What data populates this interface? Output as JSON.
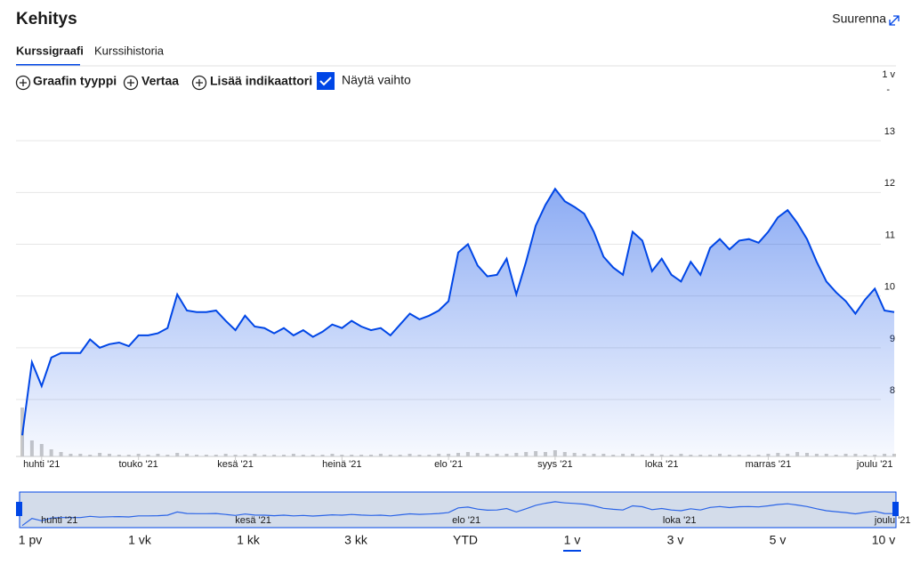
{
  "header": {
    "title": "Kehitys",
    "expand": "Suurenna"
  },
  "tabs": [
    "Kurssigraafi",
    "Kurssihistoria"
  ],
  "toolbar": {
    "buttons": [
      "Graafin tyyppi",
      "Vertaa",
      "Lisää indikaattori"
    ],
    "checkbox": "Näytä vaihto"
  },
  "chart_data": {
    "type": "line",
    "color": "#0046e6",
    "series": [
      {
        "values": [
          7.31,
          8.72,
          8.26,
          8.81,
          8.9,
          8.9,
          8.9,
          9.16,
          9.0,
          9.07,
          9.1,
          9.03,
          9.24,
          9.24,
          9.28,
          9.38,
          10.03,
          9.72,
          9.69,
          9.69,
          9.72,
          9.52,
          9.34,
          9.62,
          9.41,
          9.38,
          9.28,
          9.38,
          9.24,
          9.34,
          9.21,
          9.31,
          9.45,
          9.38,
          9.52,
          9.41,
          9.34,
          9.38,
          9.24,
          9.45,
          9.66,
          9.55,
          9.62,
          9.72,
          9.9,
          10.84,
          11.0,
          10.59,
          10.38,
          10.41,
          10.72,
          10.03,
          10.66,
          11.36,
          11.76,
          12.07,
          11.83,
          11.72,
          11.59,
          11.24,
          10.76,
          10.55,
          10.41,
          11.24,
          11.07,
          10.48,
          10.72,
          10.41,
          10.28,
          10.66,
          10.41,
          10.93,
          11.1,
          10.9,
          11.07,
          11.1,
          11.03,
          11.24,
          11.52,
          11.66,
          11.41,
          11.1,
          10.66,
          10.28,
          10.07,
          9.9,
          9.66,
          9.93,
          10.14,
          9.72,
          9.69
        ]
      }
    ],
    "volume": {
      "color": "#c8c8c8",
      "values": [
        55,
        18,
        14,
        8,
        5,
        3,
        3,
        2,
        4,
        3,
        2,
        2,
        3,
        2,
        3,
        2,
        4,
        3,
        2,
        2,
        2,
        3,
        2,
        2,
        3,
        2,
        2,
        2,
        3,
        2,
        2,
        2,
        3,
        2,
        2,
        2,
        2,
        3,
        2,
        2,
        3,
        2,
        2,
        3,
        3,
        4,
        5,
        4,
        3,
        3,
        3,
        4,
        5,
        6,
        5,
        7,
        5,
        4,
        3,
        3,
        3,
        2,
        3,
        3,
        2,
        3,
        2,
        2,
        3,
        2,
        2,
        2,
        3,
        2,
        2,
        2,
        2,
        3,
        4,
        3,
        5,
        4,
        3,
        3,
        2,
        3,
        3,
        2,
        2,
        3,
        3
      ],
      "axis_labels": [
        "1 v",
        "-"
      ]
    },
    "xlim": [
      0,
      90
    ],
    "xticks": [
      {
        "value": 2,
        "label": "huhti '21"
      },
      {
        "value": 12,
        "label": "touko '21"
      },
      {
        "value": 22,
        "label": "kesä '21"
      },
      {
        "value": 33,
        "label": "heinä '21"
      },
      {
        "value": 44,
        "label": "elo '21"
      },
      {
        "value": 55,
        "label": "syys '21"
      },
      {
        "value": 66,
        "label": "loka '21"
      },
      {
        "value": 77,
        "label": "marras '21"
      },
      {
        "value": 88,
        "label": "joulu '21"
      }
    ],
    "ylim": [
      6.9,
      14.0
    ],
    "yticks": [
      8,
      9,
      10,
      11,
      12,
      13
    ],
    "grid": true
  },
  "ranges": {
    "options": [
      "1 pv",
      "1 vk",
      "1 kk",
      "3 kk",
      "YTD",
      "1 v",
      "3 v",
      "5 v",
      "10 v"
    ],
    "selected": 5
  }
}
